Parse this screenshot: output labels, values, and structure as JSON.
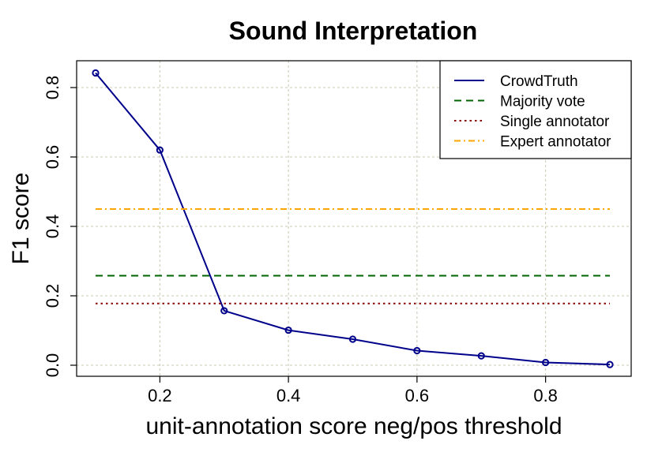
{
  "chart_data": {
    "type": "line",
    "title": "Sound Interpretation",
    "xlabel": "unit-annotation score neg/pos threshold",
    "ylabel": "F1 score",
    "xlim": [
      0.1,
      0.9
    ],
    "ylim": [
      0.0,
      0.85
    ],
    "xticks": [
      "0.2",
      "0.4",
      "0.6",
      "0.8"
    ],
    "yticks": [
      "0.0",
      "0.2",
      "0.4",
      "0.6",
      "0.8"
    ],
    "grid": true,
    "legend_position": "top-right",
    "series": [
      {
        "name": "CrowdTruth",
        "style": "solid-with-circles",
        "color": "#00008B",
        "x": [
          0.1,
          0.2,
          0.3,
          0.4,
          0.5,
          0.6,
          0.7,
          0.8,
          0.9
        ],
        "y": [
          0.842,
          0.62,
          0.157,
          0.101,
          0.075,
          0.042,
          0.027,
          0.008,
          0.002
        ]
      },
      {
        "name": "Majority vote",
        "style": "dashed",
        "color": "#006400",
        "x": [
          0.1,
          0.9
        ],
        "y": [
          0.258,
          0.258
        ]
      },
      {
        "name": "Single annotator",
        "style": "dotted",
        "color": "#8B0000",
        "x": [
          0.1,
          0.9
        ],
        "y": [
          0.178,
          0.178
        ]
      },
      {
        "name": "Expert annotator",
        "style": "dashdot",
        "color": "#FFA500",
        "x": [
          0.1,
          0.9
        ],
        "y": [
          0.45,
          0.45
        ]
      }
    ]
  }
}
